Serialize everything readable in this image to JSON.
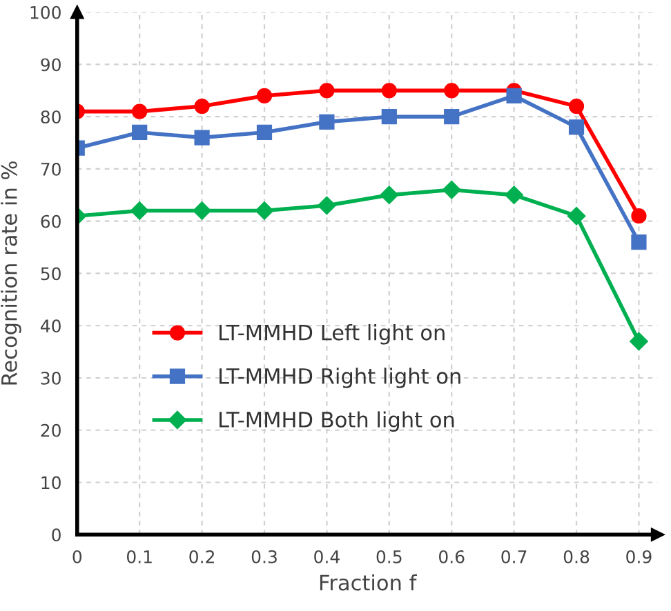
{
  "chart_data": {
    "type": "line",
    "xlabel": "Fraction f",
    "ylabel": "Recognition rate in %",
    "x": [
      0,
      0.1,
      0.2,
      0.3,
      0.4,
      0.5,
      0.6,
      0.7,
      0.8,
      0.9
    ],
    "series": [
      {
        "name": "LT-MMHD Left light on",
        "color": "#ff0000",
        "marker": "circle",
        "values": [
          81,
          81,
          82,
          84,
          85,
          85,
          85,
          85,
          82,
          61
        ]
      },
      {
        "name": "LT-MMHD Right light on",
        "color": "#4472c4",
        "marker": "square",
        "values": [
          74,
          77,
          76,
          77,
          79,
          80,
          80,
          84,
          78,
          56
        ]
      },
      {
        "name": "LT-MMHD Both light on",
        "color": "#00b050",
        "marker": "diamond",
        "values": [
          61,
          62,
          62,
          62,
          63,
          65,
          66,
          65,
          61,
          37
        ]
      }
    ],
    "xlim": [
      0,
      0.93
    ],
    "xticks": [
      0,
      0.1,
      0.2,
      0.3,
      0.4,
      0.5,
      0.6,
      0.7,
      0.8,
      0.9
    ],
    "ylim": [
      0,
      100
    ],
    "yticks": [
      0,
      10,
      20,
      30,
      40,
      50,
      60,
      70,
      80,
      90,
      100
    ],
    "grid": true,
    "legend": "left",
    "line_style": "solid"
  }
}
